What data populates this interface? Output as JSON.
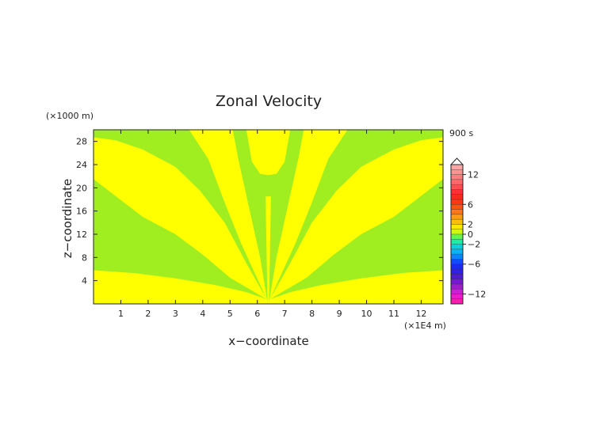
{
  "chart_data": {
    "type": "heatmap",
    "title": "Zonal Velocity",
    "xlabel": "x−coordinate",
    "ylabel": "z−coordinate",
    "x_unit": "(×1E4 m)",
    "y_unit": "(×1000 m)",
    "time_label": "900 s",
    "xlim": [
      0,
      12.8
    ],
    "ylim": [
      0,
      30
    ],
    "x_ticks": [
      "1",
      "2",
      "3",
      "4",
      "5",
      "6",
      "7",
      "8",
      "9",
      "10",
      "11",
      "12"
    ],
    "y_ticks": [
      "4",
      "8",
      "12",
      "16",
      "20",
      "24",
      "28"
    ],
    "colorbar": {
      "range": [
        -14,
        14
      ],
      "tick_labels": [
        "12",
        "6",
        "2",
        "0",
        "−2",
        "−6",
        "−12"
      ],
      "tick_values": [
        12,
        6,
        2,
        0,
        -2,
        -6,
        -12
      ]
    },
    "colors": {
      "yellow_band": "#ffff00",
      "green_band": "#a0ee20"
    },
    "field_description": "Alternating yellow (0 to 1) and green (-1 to 0) bands fanning out symmetrically from the center x=6.4 near the ground"
  }
}
